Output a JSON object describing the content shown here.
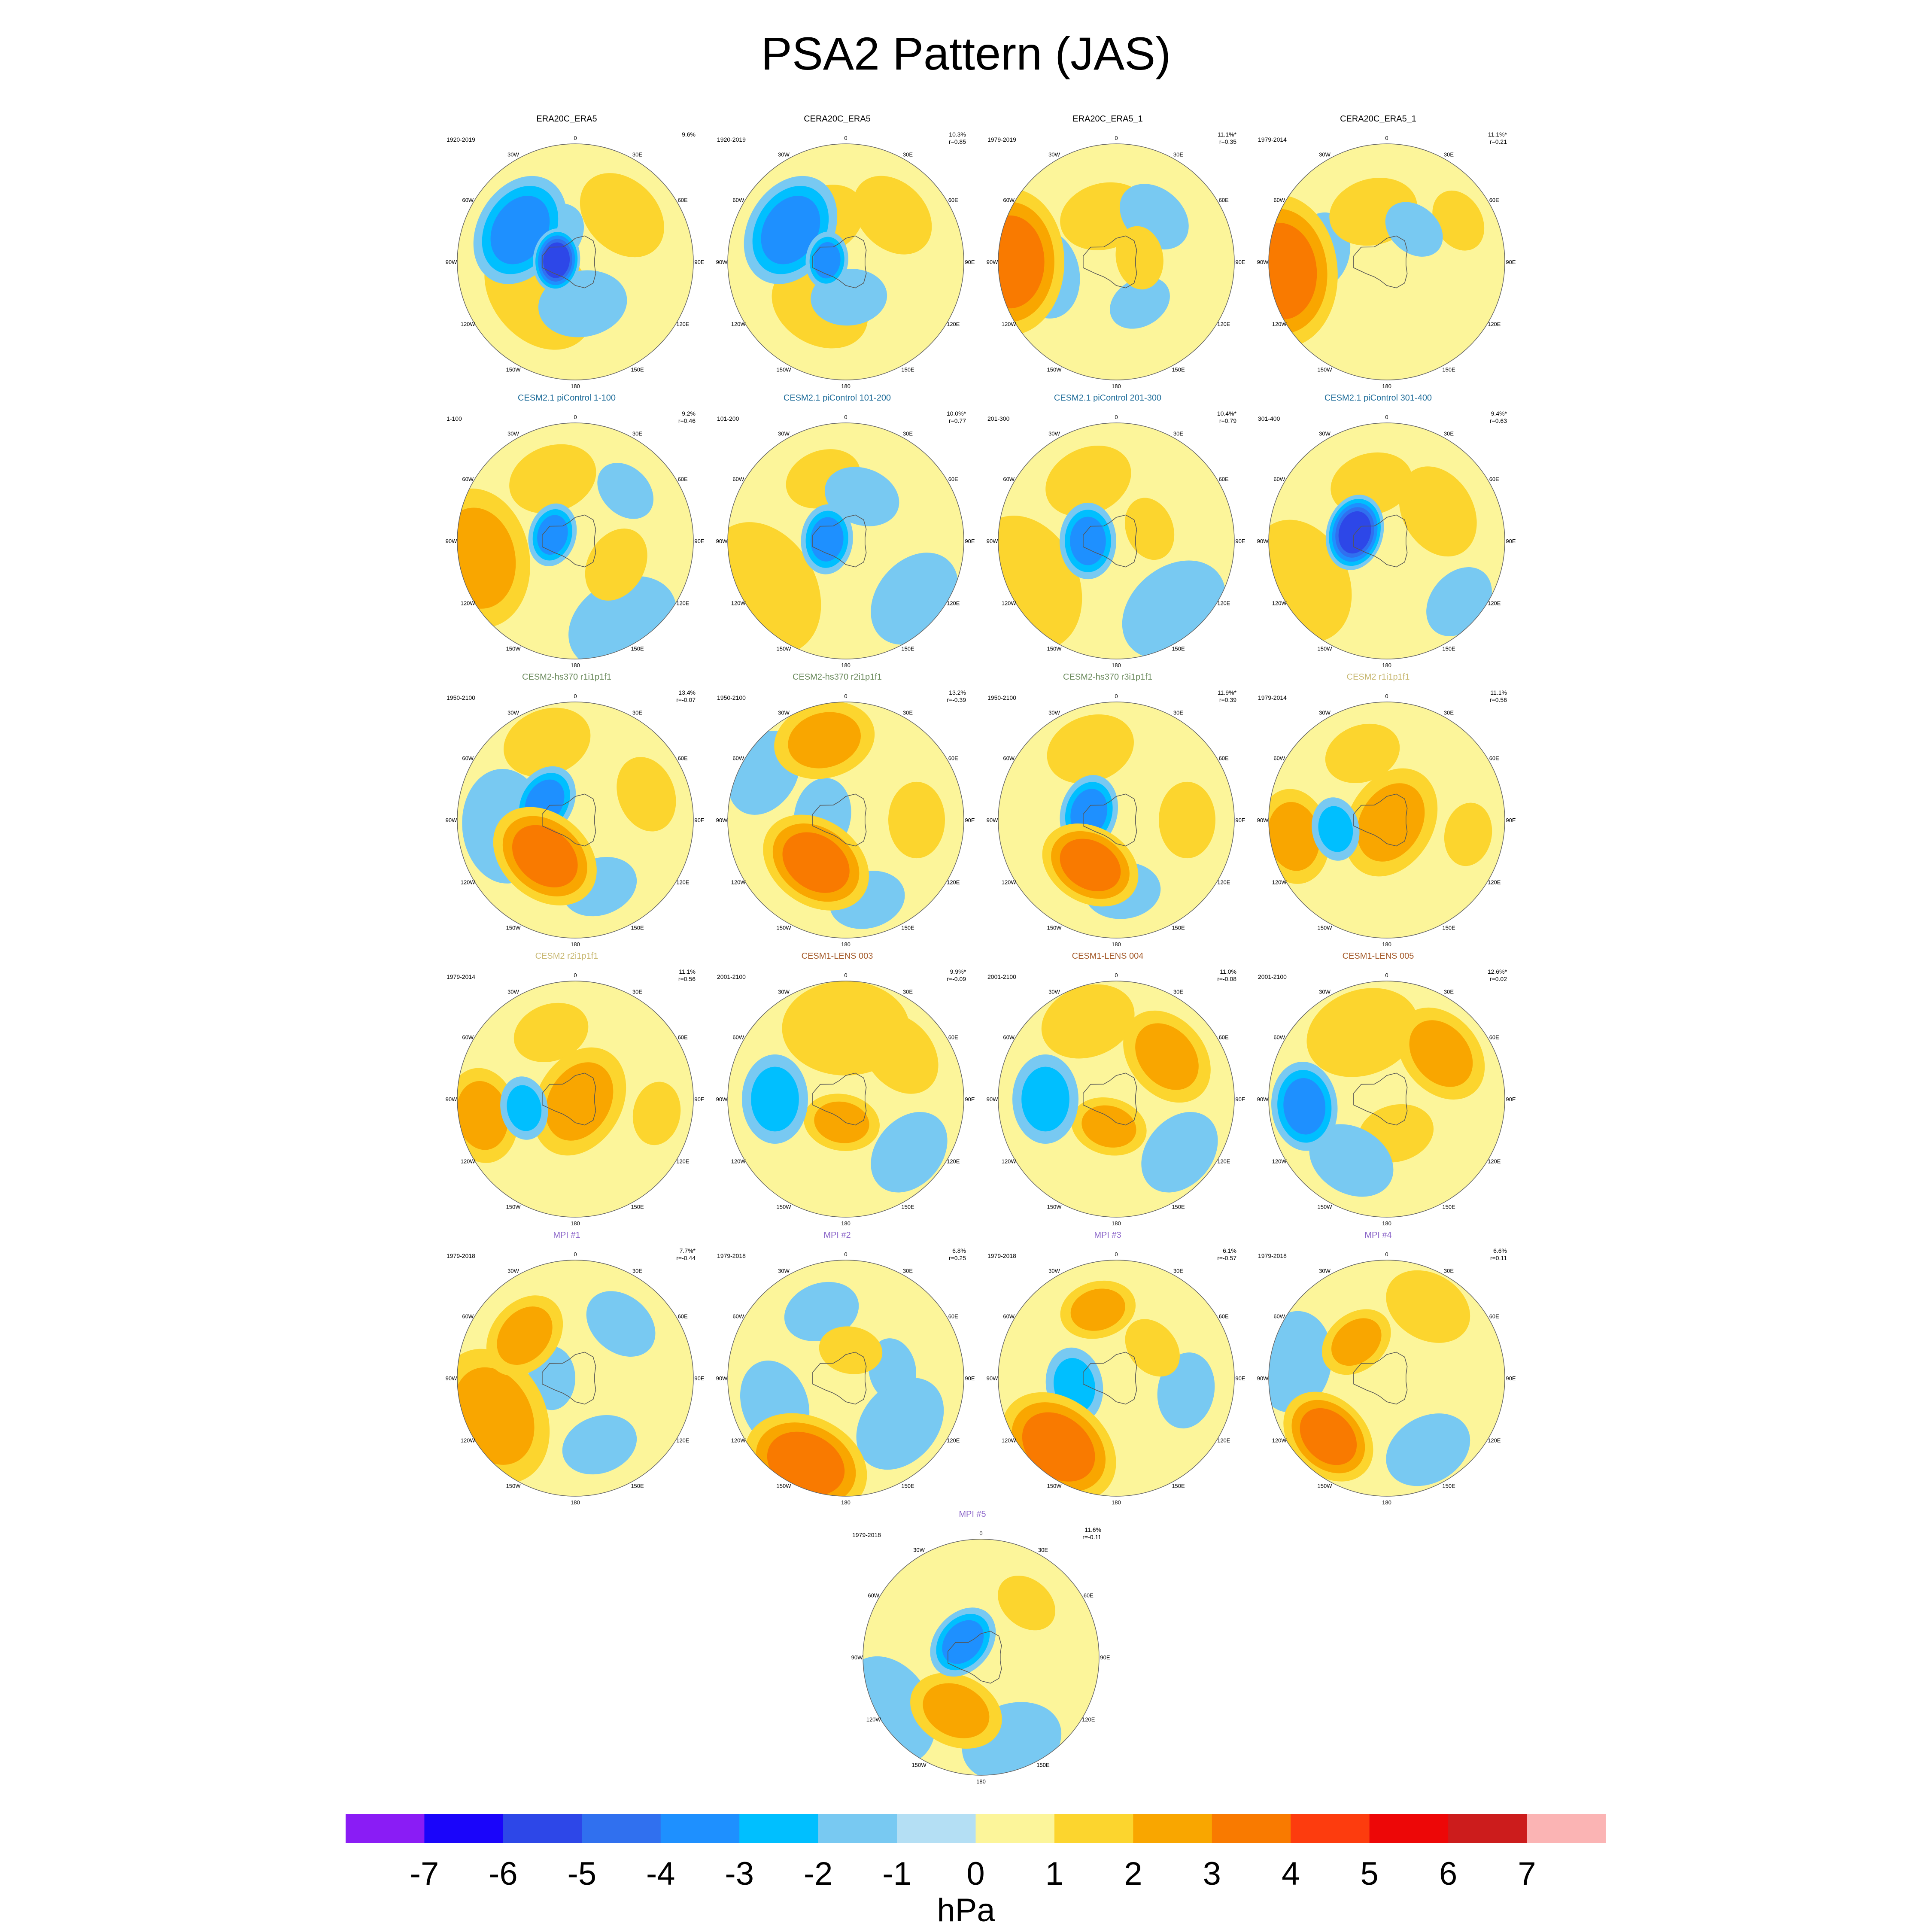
{
  "page_title": "PSA2 Pattern (JAS)",
  "lon_labels": [
    "0",
    "30E",
    "60E",
    "90E",
    "120E",
    "150E",
    "180",
    "150W",
    "120W",
    "90W",
    "60W",
    "30W"
  ],
  "colors": {
    "scale": [
      "#8a1cf5",
      "#1a05fa",
      "#2d47e8",
      "#3070ef",
      "#1e90ff",
      "#00bfff",
      "#78c9f2",
      "#b4dff4",
      "#fcf59a",
      "#fcd52e",
      "#f9a600",
      "#f97a00",
      "#fd3c0e",
      "#ed0707",
      "#cc1c1c",
      "#fbb4b4"
    ],
    "text_blue": "#1f6d9a",
    "text_green": "#6a8a5c",
    "text_khaki": "#c8b872",
    "text_brown": "#a45a2a",
    "text_purple": "#8a64c8"
  },
  "chart_data": {
    "type": "heatmap",
    "projection": "south-polar stereographic",
    "title": "PSA2 Pattern (JAS)",
    "colorbar": {
      "ticks": [
        "-7",
        "-6",
        "-5",
        "-4",
        "-3",
        "-2",
        "-1",
        "0",
        "1",
        "2",
        "3",
        "4",
        "5",
        "6",
        "7"
      ],
      "unit": "hPa"
    },
    "panels": [
      {
        "title": "ERA20C_ERA5",
        "years": "1920-2019",
        "pct": "9.6%",
        "r": "",
        "tc": "#000000",
        "blobs": [
          [
            -60,
            27,
            18,
            -3
          ],
          [
            -85,
            8,
            10,
            -5
          ],
          [
            -130,
            20,
            20,
            1
          ],
          [
            170,
            18,
            14,
            -1
          ],
          [
            45,
            28,
            15,
            1
          ],
          [
            -45,
            15,
            12,
            -1
          ]
        ]
      },
      {
        "title": "CERA20C_ERA5",
        "years": "1920-2019",
        "pct": "10.3%",
        "r": "r=0.85",
        "tc": "#000000",
        "blobs": [
          [
            -60,
            27,
            18,
            -3
          ],
          [
            -85,
            8,
            9,
            -3
          ],
          [
            -150,
            22,
            16,
            1
          ],
          [
            175,
            15,
            12,
            -1
          ],
          [
            45,
            28,
            14,
            1
          ],
          [
            -30,
            20,
            14,
            1
          ]
        ]
      },
      {
        "title": "ERA20C_ERA5_1",
        "years": "1979-2019",
        "pct": "11.1%*",
        "r": "r=0.35",
        "tc": "#000000",
        "blobs": [
          [
            -90,
            45,
            23,
            3
          ],
          [
            -100,
            30,
            14,
            -1
          ],
          [
            -15,
            20,
            14,
            1
          ],
          [
            40,
            25,
            12,
            -1
          ],
          [
            150,
            20,
            10,
            -1
          ],
          [
            80,
            10,
            10,
            1
          ]
        ]
      },
      {
        "title": "CERA20C_ERA5_1",
        "years": "1979-2014",
        "pct": "11.1%*",
        "r": "r=0.21",
        "tc": "#000000",
        "blobs": [
          [
            -95,
            45,
            24,
            3
          ],
          [
            -80,
            28,
            12,
            -1
          ],
          [
            -15,
            22,
            14,
            1
          ],
          [
            60,
            35,
            10,
            1
          ],
          [
            40,
            18,
            10,
            -1
          ]
        ]
      },
      {
        "title": "CESM2.1 piControl 1-100",
        "years": "1-100",
        "pct": "9.2%",
        "r": "r=0.46",
        "tc": "#1f6d9a",
        "blobs": [
          [
            -75,
            10,
            10,
            -3
          ],
          [
            -100,
            42,
            22,
            2
          ],
          [
            -20,
            28,
            14,
            1
          ],
          [
            150,
            40,
            18,
            -1
          ],
          [
            120,
            20,
            12,
            1
          ],
          [
            45,
            30,
            10,
            -1
          ]
        ]
      },
      {
        "title": "CESM2.1 piControl 101-200",
        "years": "101-200",
        "pct": "10.0%*",
        "r": "r=0.77",
        "tc": "#1f6d9a",
        "blobs": [
          [
            -85,
            8,
            11,
            -3
          ],
          [
            -120,
            40,
            22,
            1
          ],
          [
            -20,
            28,
            12,
            1
          ],
          [
            130,
            38,
            16,
            -1
          ],
          [
            20,
            20,
            12,
            -1
          ]
        ]
      },
      {
        "title": "CESM2.1 piControl 201-300",
        "years": "201-300",
        "pct": "10.4%*",
        "r": "r=0.79",
        "tc": "#1f6d9a",
        "blobs": [
          [
            -90,
            12,
            12,
            -3
          ],
          [
            -115,
            42,
            22,
            1
          ],
          [
            -25,
            28,
            14,
            1
          ],
          [
            140,
            38,
            18,
            -1
          ],
          [
            70,
            15,
            10,
            1
          ]
        ]
      },
      {
        "title": "CESM2.1 piControl 301-400",
        "years": "301-400",
        "pct": "9.4%*",
        "r": "r=0.63",
        "tc": "#1f6d9a",
        "blobs": [
          [
            -75,
            14,
            12,
            -5
          ],
          [
            -115,
            40,
            20,
            1
          ],
          [
            -15,
            25,
            13,
            1
          ],
          [
            130,
            40,
            12,
            -1
          ],
          [
            60,
            25,
            15,
            1
          ]
        ]
      },
      {
        "title": "CESM2-hs370 r1i1p1f1",
        "years": "1950-2100",
        "pct": "13.4%",
        "r": "r=-0.07",
        "tc": "#6a8a5c",
        "blobs": [
          [
            -60,
            15,
            12,
            -3
          ],
          [
            -140,
            20,
            18,
            3
          ],
          [
            -20,
            35,
            14,
            1
          ],
          [
            70,
            32,
            12,
            1
          ],
          [
            160,
            30,
            12,
            -1
          ],
          [
            -95,
            30,
            18,
            -1
          ]
        ]
      },
      {
        "title": "CESM2-hs370 r2i1p1f1",
        "years": "1950-2100",
        "pct": "13.2%",
        "r": "r=-0.39",
        "tc": "#6a8a5c",
        "blobs": [
          [
            -80,
            10,
            12,
            -1
          ],
          [
            -145,
            22,
            18,
            3
          ],
          [
            -15,
            35,
            16,
            2
          ],
          [
            90,
            30,
            12,
            1
          ],
          [
            165,
            35,
            12,
            -1
          ],
          [
            -60,
            40,
            14,
            -1
          ]
        ]
      },
      {
        "title": "CESM2-hs370 r3i1p1f1",
        "years": "1950-2100",
        "pct": "11.9%*",
        "r": "r=0.39",
        "tc": "#6a8a5c",
        "blobs": [
          [
            -75,
            12,
            12,
            -3
          ],
          [
            -150,
            22,
            16,
            3
          ],
          [
            -20,
            32,
            14,
            1
          ],
          [
            90,
            30,
            12,
            1
          ],
          [
            175,
            30,
            12,
            -1
          ]
        ]
      },
      {
        "title": "CESM2 r1i1p1f1",
        "years": "1979-2014",
        "pct": "11.1%",
        "r": "r=0.56",
        "tc": "#c8b872",
        "blobs": [
          [
            120,
            2,
            18,
            2
          ],
          [
            -100,
            40,
            15,
            2
          ],
          [
            -100,
            22,
            10,
            -2
          ],
          [
            100,
            35,
            10,
            1
          ],
          [
            -20,
            30,
            12,
            1
          ]
        ]
      },
      {
        "title": "CESM2 r2i1p1f1",
        "years": "1979-2014",
        "pct": "11.1%",
        "r": "r=0.56",
        "tc": "#c8b872",
        "blobs": [
          [
            120,
            2,
            18,
            2
          ],
          [
            -100,
            40,
            15,
            2
          ],
          [
            -100,
            22,
            10,
            -2
          ],
          [
            100,
            35,
            10,
            1
          ],
          [
            -20,
            30,
            12,
            1
          ]
        ]
      },
      {
        "title": "CESM1-LENS 003",
        "years": "2001-2100",
        "pct": "9.9%*",
        "r": "r=-0.09",
        "tc": "#a45a2a",
        "blobs": [
          [
            -170,
            10,
            12,
            2
          ],
          [
            -90,
            30,
            14,
            -2
          ],
          [
            50,
            30,
            14,
            1
          ],
          [
            130,
            35,
            14,
            -1
          ],
          [
            0,
            30,
            20,
            1
          ]
        ]
      },
      {
        "title": "CESM1-LENS 004",
        "years": "2001-2100",
        "pct": "11.0%",
        "r": "r=-0.08",
        "tc": "#a45a2a",
        "blobs": [
          [
            -165,
            12,
            12,
            2
          ],
          [
            -90,
            30,
            14,
            -2
          ],
          [
            50,
            28,
            16,
            2
          ],
          [
            130,
            35,
            14,
            -1
          ],
          [
            -20,
            35,
            15,
            1
          ]
        ]
      },
      {
        "title": "CESM1-LENS 005",
        "years": "2001-2100",
        "pct": "12.6%*",
        "r": "r=0.02",
        "tc": "#a45a2a",
        "blobs": [
          [
            -95,
            35,
            14,
            -3
          ],
          [
            50,
            30,
            16,
            2
          ],
          [
            165,
            15,
            12,
            1
          ],
          [
            -150,
            30,
            14,
            -1
          ],
          [
            -20,
            30,
            18,
            1
          ]
        ]
      },
      {
        "title": "MPI #1",
        "years": "1979-2018",
        "pct": "7.7%*",
        "r": "r=-0.44",
        "tc": "#8a64c8",
        "blobs": [
          [
            -115,
            38,
            22,
            2
          ],
          [
            -50,
            28,
            14,
            2
          ],
          [
            40,
            30,
            12,
            -1
          ],
          [
            -90,
            10,
            10,
            -1
          ],
          [
            160,
            30,
            12,
            -1
          ]
        ]
      },
      {
        "title": "MPI #2",
        "years": "1979-2018",
        "pct": "6.8%",
        "r": "r=0.25",
        "tc": "#8a64c8",
        "blobs": [
          [
            -155,
            40,
            20,
            3
          ],
          [
            -110,
            32,
            14,
            -1
          ],
          [
            -20,
            30,
            12,
            -1
          ],
          [
            80,
            20,
            10,
            -1
          ],
          [
            130,
            30,
            16,
            -1
          ],
          [
            10,
            12,
            10,
            1
          ]
        ]
      },
      {
        "title": "MPI #3",
        "years": "1979-2018",
        "pct": "6.1%",
        "r": "r=-0.57",
        "tc": "#8a64c8",
        "blobs": [
          [
            -140,
            38,
            20,
            3
          ],
          [
            -100,
            18,
            12,
            -2
          ],
          [
            -15,
            30,
            12,
            2
          ],
          [
            100,
            30,
            12,
            -1
          ],
          [
            50,
            20,
            10,
            1
          ]
        ]
      },
      {
        "title": "MPI #4",
        "years": "1979-2018",
        "pct": "6.6%",
        "r": "r=0.11",
        "tc": "#8a64c8",
        "blobs": [
          [
            -135,
            35,
            16,
            3
          ],
          [
            -40,
            20,
            12,
            2
          ],
          [
            -80,
            40,
            16,
            -1
          ],
          [
            30,
            35,
            14,
            1
          ],
          [
            150,
            35,
            14,
            -1
          ]
        ]
      },
      {
        "title": "MPI #5",
        "years": "1979-2018",
        "pct": "11.6%",
        "r": "r=-0.11",
        "tc": "#8a64c8",
        "blobs": [
          [
            -50,
            10,
            12,
            -3
          ],
          [
            -155,
            25,
            15,
            2
          ],
          [
            -120,
            45,
            18,
            -1
          ],
          [
            160,
            38,
            16,
            -1
          ],
          [
            40,
            30,
            10,
            1
          ]
        ]
      }
    ]
  }
}
